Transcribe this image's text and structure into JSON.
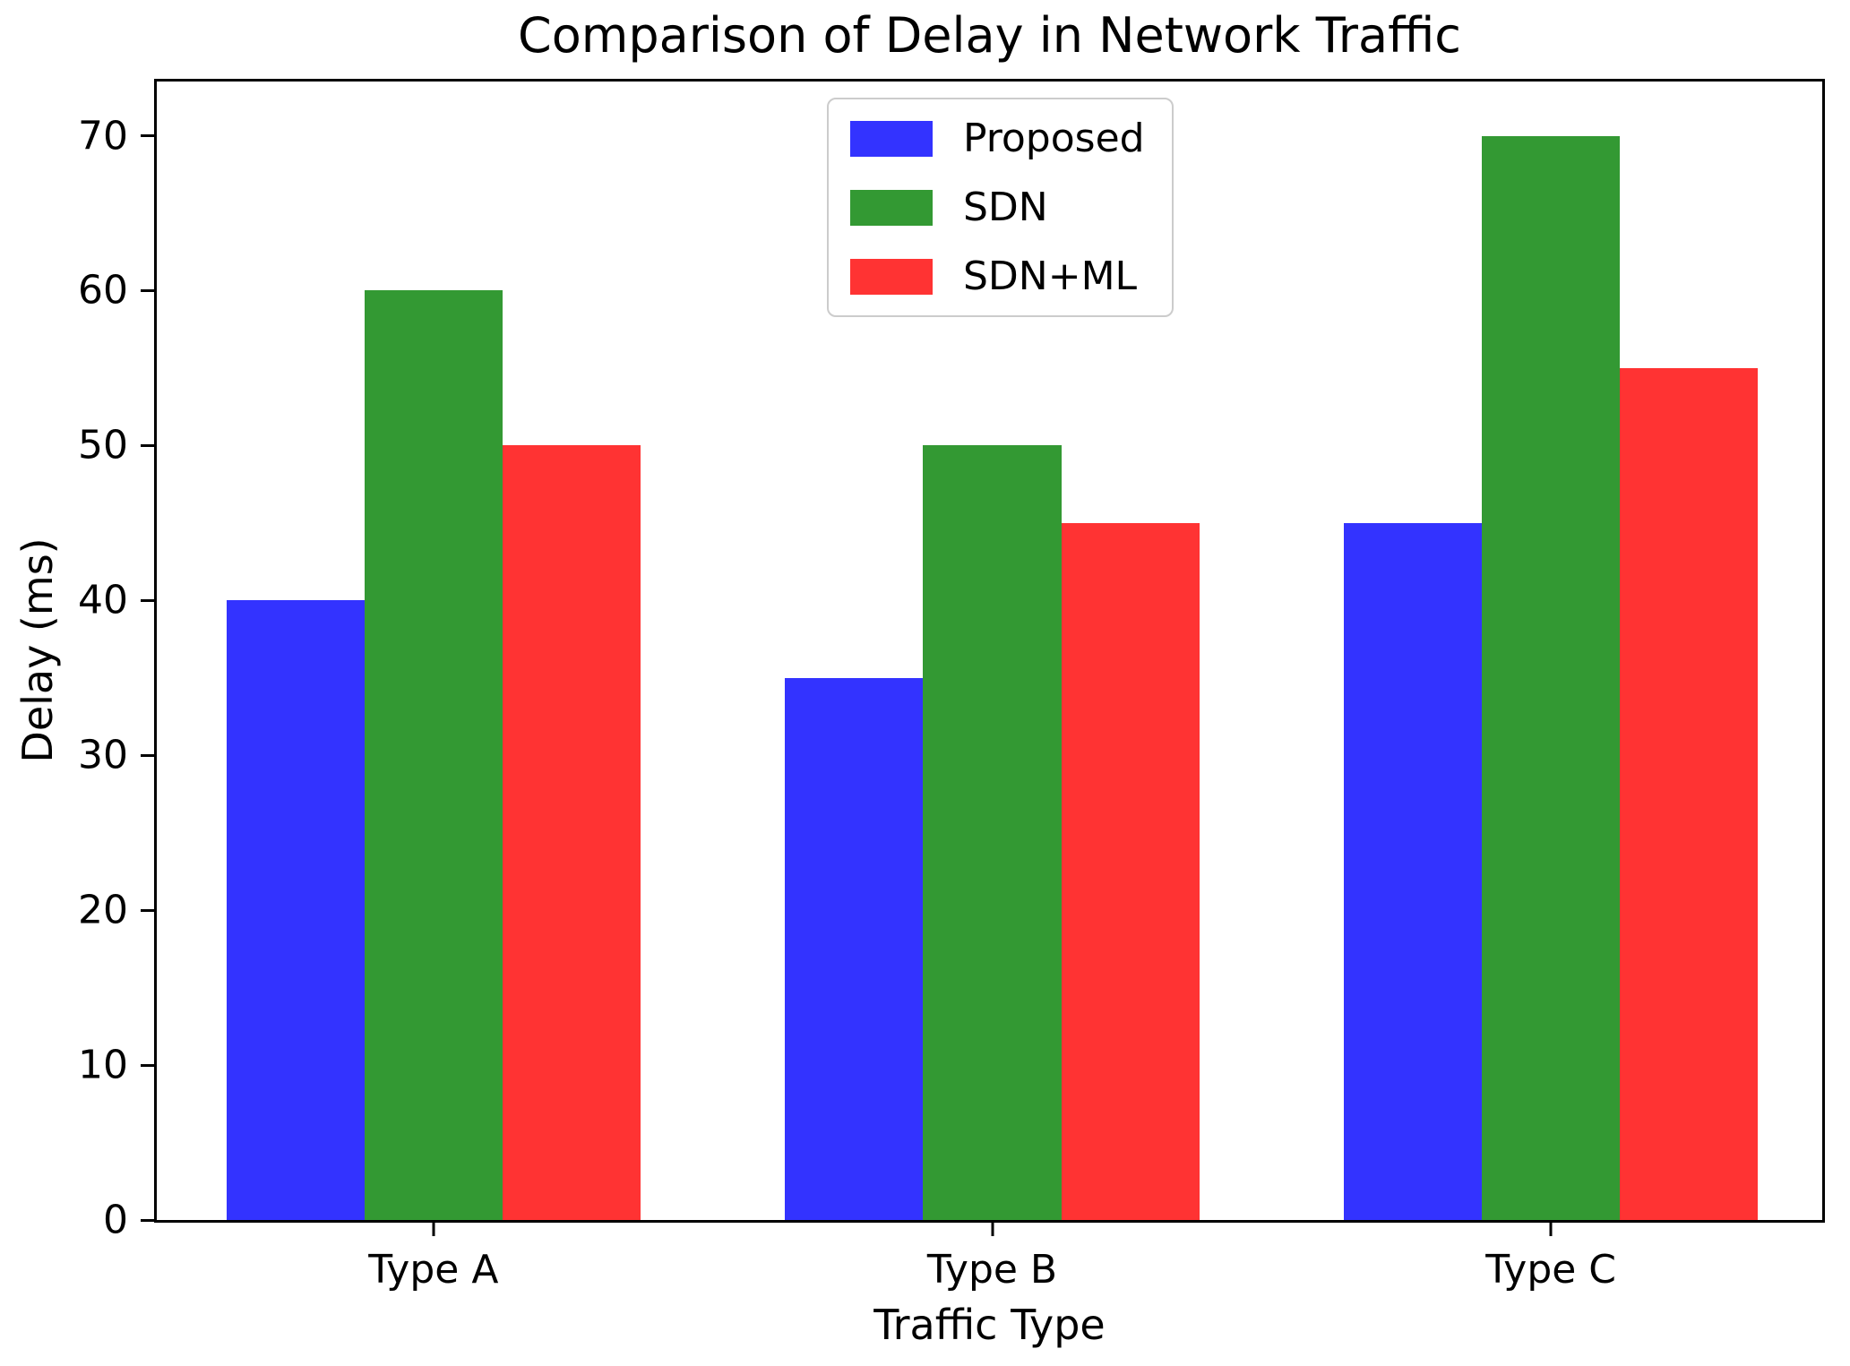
{
  "title": "Comparison of Delay in Network Traffic",
  "chart_data": {
    "type": "bar",
    "title": "Comparison of Delay in Network Traffic",
    "xlabel": "Traffic Type",
    "ylabel": "Delay (ms)",
    "categories": [
      "Type A",
      "Type B",
      "Type C"
    ],
    "series": [
      {
        "name": "Proposed",
        "color": "#3333FF",
        "values": [
          40,
          35,
          45
        ]
      },
      {
        "name": "SDN",
        "color": "#339933",
        "values": [
          60,
          50,
          70
        ]
      },
      {
        "name": "SDN+ML",
        "color": "#FF3333",
        "values": [
          50,
          45,
          55
        ]
      }
    ],
    "yticks": [
      0,
      10,
      20,
      30,
      40,
      50,
      60,
      70
    ],
    "ylim": [
      0,
      73.5
    ],
    "grid": false,
    "legend_position": "upper center",
    "axis_color": "#000000",
    "background_color": "#ffffff"
  }
}
